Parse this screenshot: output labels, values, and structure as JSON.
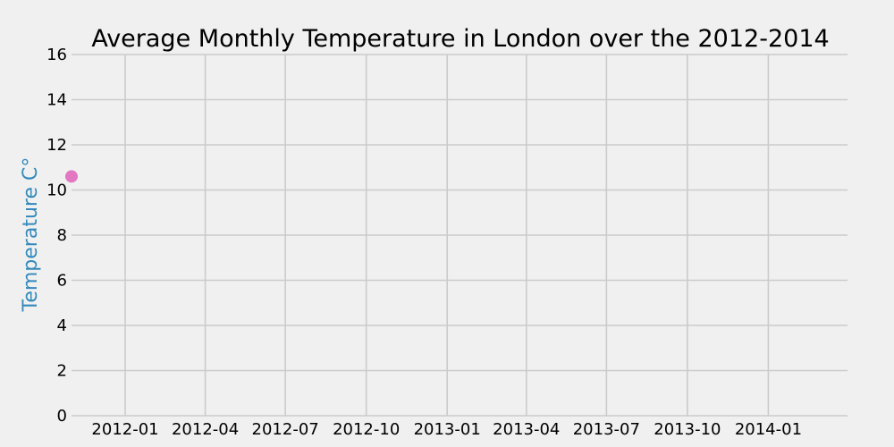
{
  "chart_data": {
    "type": "scatter",
    "title": "Average Monthly Temperature in London over the 2012-2014",
    "xlabel": "",
    "ylabel": "Temperature C°",
    "ylabel_color": "#348abd",
    "background": "#f0f0f0",
    "grid": true,
    "x_axis_type": "date",
    "xlim": [
      "2011-11-01",
      "2014-04-01"
    ],
    "ylim": [
      0,
      16
    ],
    "x_ticks": [
      "2012-01",
      "2012-04",
      "2012-07",
      "2012-10",
      "2013-01",
      "2013-04",
      "2013-07",
      "2013-10",
      "2014-01"
    ],
    "y_ticks": [
      0,
      2,
      4,
      6,
      8,
      10,
      12,
      14,
      16
    ],
    "series": [
      {
        "color": "#e377c2",
        "points": [
          {
            "x": "2011-11-01",
            "y": 10.6
          }
        ]
      }
    ]
  }
}
